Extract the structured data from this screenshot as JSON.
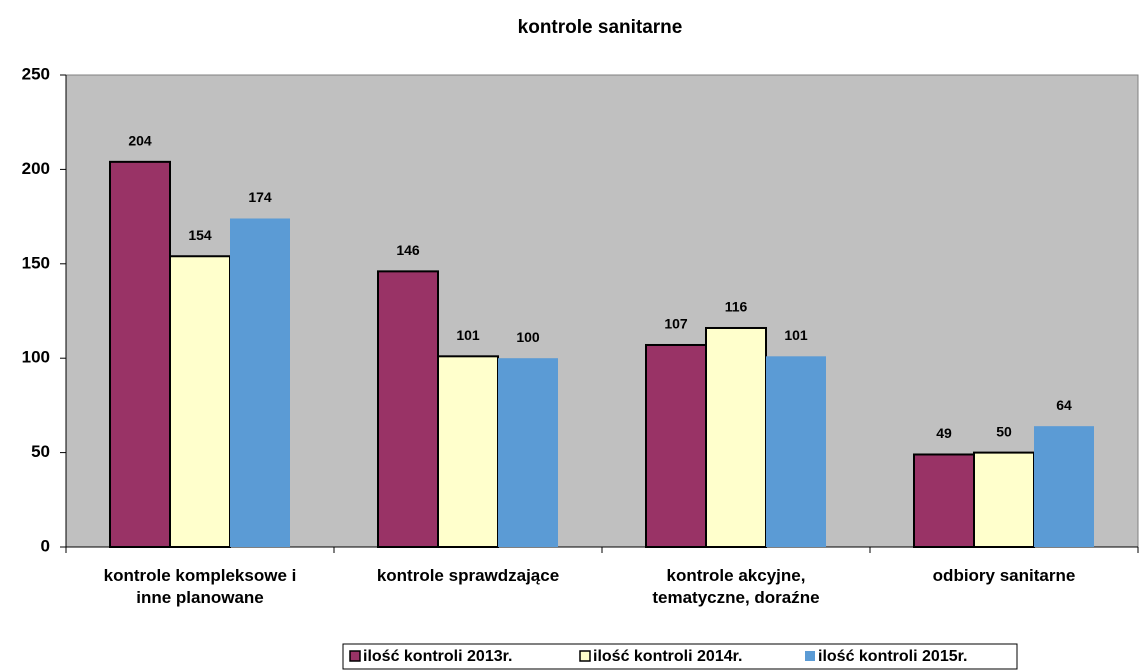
{
  "chart_data": {
    "type": "bar",
    "title": "kontrole sanitarne",
    "categories": [
      "kontrole kompleksowe i\ninne planowane",
      "kontrole sprawdzające",
      "kontrole akcyjne,\ntematyczne, doraźne",
      "odbiory sanitarne"
    ],
    "series": [
      {
        "name": "ilość kontroli 2013r.",
        "color": "#993366",
        "values": [
          204,
          146,
          107,
          49
        ]
      },
      {
        "name": "ilość kontroli 2014r.",
        "color": "#ffffcc",
        "values": [
          154,
          101,
          116,
          50
        ]
      },
      {
        "name": "ilość kontroli 2015r.",
        "color": "#5b9bd5",
        "values": [
          174,
          100,
          101,
          64
        ]
      }
    ],
    "ylim": [
      0,
      250
    ],
    "yticks": [
      0,
      50,
      100,
      150,
      200,
      250
    ],
    "legend": "bottom",
    "plot_background": "#c0c0c0"
  }
}
